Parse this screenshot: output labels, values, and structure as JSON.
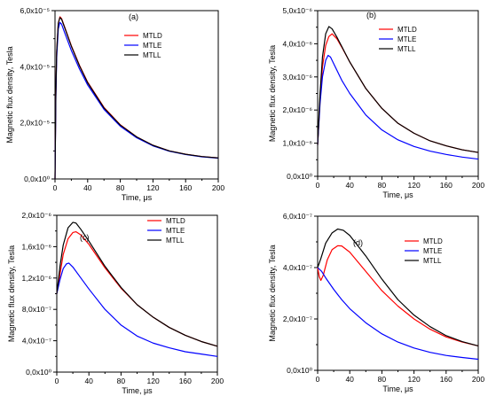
{
  "chart_data": [
    {
      "type": "line",
      "panel_label": "(a)",
      "xlabel": "Time, μs",
      "ylabel": "Magnetic flux density, Tesla",
      "xlim": [
        0,
        200
      ],
      "ylim": [
        0,
        6e-05
      ],
      "x_ticks": [
        "0",
        "40",
        "80",
        "120",
        "160",
        "200"
      ],
      "y_ticks": [
        "0,0x10⁰",
        "2,0x10⁻⁵",
        "4,0x10⁻⁵",
        "6,0x10⁻⁵"
      ],
      "legend_position": "top-right",
      "series": [
        {
          "name": "MTLD",
          "color": "#ff0000",
          "points": [
            [
              0,
              0
            ],
            [
              1,
              3e-05
            ],
            [
              2,
              4.5e-05
            ],
            [
              4,
              5.55e-05
            ],
            [
              6,
              5.78e-05
            ],
            [
              8,
              5.72e-05
            ],
            [
              12,
              5.4e-05
            ],
            [
              20,
              4.75e-05
            ],
            [
              30,
              4.05e-05
            ],
            [
              40,
              3.45e-05
            ],
            [
              60,
              2.55e-05
            ],
            [
              80,
              1.93e-05
            ],
            [
              100,
              1.5e-05
            ],
            [
              120,
              1.2e-05
            ],
            [
              140,
              1e-05
            ],
            [
              160,
              8.8e-06
            ],
            [
              180,
              8e-06
            ],
            [
              200,
              7.5e-06
            ]
          ]
        },
        {
          "name": "MTLE",
          "color": "#0000ff",
          "points": [
            [
              0,
              0
            ],
            [
              1,
              2.8e-05
            ],
            [
              2,
              4.3e-05
            ],
            [
              4,
              5.35e-05
            ],
            [
              6,
              5.58e-05
            ],
            [
              8,
              5.52e-05
            ],
            [
              12,
              5.2e-05
            ],
            [
              20,
              4.58e-05
            ],
            [
              30,
              3.92e-05
            ],
            [
              40,
              3.35e-05
            ],
            [
              60,
              2.48e-05
            ],
            [
              80,
              1.88e-05
            ],
            [
              100,
              1.47e-05
            ],
            [
              120,
              1.18e-05
            ],
            [
              140,
              9.9e-06
            ],
            [
              160,
              8.7e-06
            ],
            [
              180,
              7.9e-06
            ],
            [
              200,
              7.4e-06
            ]
          ]
        },
        {
          "name": "MTLL",
          "color": "#000000",
          "points": [
            [
              0,
              0
            ],
            [
              1,
              3e-05
            ],
            [
              2,
              4.5e-05
            ],
            [
              4,
              5.55e-05
            ],
            [
              6,
              5.75e-05
            ],
            [
              8,
              5.7e-05
            ],
            [
              12,
              5.38e-05
            ],
            [
              20,
              4.73e-05
            ],
            [
              30,
              4.03e-05
            ],
            [
              40,
              3.43e-05
            ],
            [
              60,
              2.53e-05
            ],
            [
              80,
              1.92e-05
            ],
            [
              100,
              1.5e-05
            ],
            [
              120,
              1.2e-05
            ],
            [
              140,
              1e-05
            ],
            [
              160,
              8.8e-06
            ],
            [
              180,
              8e-06
            ],
            [
              200,
              7.5e-06
            ]
          ]
        }
      ]
    },
    {
      "type": "line",
      "panel_label": "(b)",
      "xlabel": "Time, μs",
      "ylabel": "Magnetic flux density, Tesla",
      "xlim": [
        0,
        200
      ],
      "ylim": [
        0,
        5e-06
      ],
      "x_ticks": [
        "0",
        "40",
        "80",
        "120",
        "160",
        "200"
      ],
      "y_ticks": [
        "0,0x10⁰",
        "1,0x10⁻⁶",
        "2,0x10⁻⁶",
        "3,0x10⁻⁶",
        "4,0x10⁻⁶",
        "5,0x10⁻⁶"
      ],
      "legend_position": "top-right",
      "series": [
        {
          "name": "MTLD",
          "color": "#ff0000",
          "points": [
            [
              0,
              9.5e-07
            ],
            [
              3,
              2.3e-06
            ],
            [
              6,
              3.3e-06
            ],
            [
              10,
              3.95e-06
            ],
            [
              14,
              4.22e-06
            ],
            [
              18,
              4.3e-06
            ],
            [
              24,
              4.15e-06
            ],
            [
              30,
              3.9e-06
            ],
            [
              40,
              3.45e-06
            ],
            [
              60,
              2.65e-06
            ],
            [
              80,
              2.05e-06
            ],
            [
              100,
              1.6e-06
            ],
            [
              120,
              1.3e-06
            ],
            [
              140,
              1.07e-06
            ],
            [
              160,
              9.2e-07
            ],
            [
              180,
              8e-07
            ],
            [
              200,
              7.2e-07
            ]
          ]
        },
        {
          "name": "MTLE",
          "color": "#0000ff",
          "points": [
            [
              0,
              9.5e-07
            ],
            [
              3,
              2.2e-06
            ],
            [
              6,
              3e-06
            ],
            [
              10,
              3.5e-06
            ],
            [
              13,
              3.65e-06
            ],
            [
              16,
              3.6e-06
            ],
            [
              20,
              3.4e-06
            ],
            [
              30,
              2.9e-06
            ],
            [
              40,
              2.5e-06
            ],
            [
              60,
              1.85e-06
            ],
            [
              80,
              1.4e-06
            ],
            [
              100,
              1.1e-06
            ],
            [
              120,
              9e-07
            ],
            [
              140,
              7.6e-07
            ],
            [
              160,
              6.6e-07
            ],
            [
              180,
              5.8e-07
            ],
            [
              200,
              5.2e-07
            ]
          ]
        },
        {
          "name": "MTLL",
          "color": "#000000",
          "points": [
            [
              0,
              9.5e-07
            ],
            [
              3,
              2.5e-06
            ],
            [
              6,
              3.6e-06
            ],
            [
              10,
              4.3e-06
            ],
            [
              14,
              4.52e-06
            ],
            [
              18,
              4.45e-06
            ],
            [
              24,
              4.2e-06
            ],
            [
              30,
              3.92e-06
            ],
            [
              40,
              3.45e-06
            ],
            [
              60,
              2.65e-06
            ],
            [
              80,
              2.05e-06
            ],
            [
              100,
              1.6e-06
            ],
            [
              120,
              1.3e-06
            ],
            [
              140,
              1.07e-06
            ],
            [
              160,
              9.2e-07
            ],
            [
              180,
              8e-07
            ],
            [
              200,
              7.2e-07
            ]
          ]
        }
      ]
    },
    {
      "type": "line",
      "panel_label": "(c)",
      "xlabel": "Time, μs",
      "ylabel": "Magnetic flux density, Tesla",
      "xlim": [
        0,
        200
      ],
      "ylim": [
        0,
        2e-06
      ],
      "x_ticks": [
        "0",
        "40",
        "80",
        "120",
        "160",
        "200"
      ],
      "y_ticks": [
        "0,0x10⁰",
        "4,0x10⁻⁷",
        "8,0x10⁻⁷",
        "1,2x10⁻⁶",
        "1,6x10⁻⁶",
        "2,0x10⁻⁶"
      ],
      "legend_position": "top-right",
      "series": [
        {
          "name": "MTLD",
          "color": "#ff0000",
          "points": [
            [
              0,
              1e-06
            ],
            [
              4,
              1.25e-06
            ],
            [
              8,
              1.5e-06
            ],
            [
              14,
              1.7e-06
            ],
            [
              20,
              1.78e-06
            ],
            [
              24,
              1.79e-06
            ],
            [
              30,
              1.75e-06
            ],
            [
              40,
              1.63e-06
            ],
            [
              60,
              1.33e-06
            ],
            [
              80,
              1.07e-06
            ],
            [
              100,
              8.6e-07
            ],
            [
              120,
              7e-07
            ],
            [
              140,
              5.7e-07
            ],
            [
              160,
              4.7e-07
            ],
            [
              180,
              3.9e-07
            ],
            [
              200,
              3.3e-07
            ]
          ]
        },
        {
          "name": "MTLE",
          "color": "#0000ff",
          "points": [
            [
              0,
              1e-06
            ],
            [
              4,
              1.18e-06
            ],
            [
              8,
              1.32e-06
            ],
            [
              12,
              1.38e-06
            ],
            [
              15,
              1.39e-06
            ],
            [
              20,
              1.34e-06
            ],
            [
              30,
              1.2e-06
            ],
            [
              40,
              1.06e-06
            ],
            [
              60,
              8e-07
            ],
            [
              80,
              6e-07
            ],
            [
              100,
              4.6e-07
            ],
            [
              120,
              3.7e-07
            ],
            [
              140,
              3.1e-07
            ],
            [
              160,
              2.6e-07
            ],
            [
              180,
              2.3e-07
            ],
            [
              200,
              2e-07
            ]
          ]
        },
        {
          "name": "MTLL",
          "color": "#000000",
          "points": [
            [
              0,
              1e-06
            ],
            [
              4,
              1.35e-06
            ],
            [
              8,
              1.62e-06
            ],
            [
              14,
              1.84e-06
            ],
            [
              20,
              1.91e-06
            ],
            [
              24,
              1.9e-06
            ],
            [
              30,
              1.82e-06
            ],
            [
              40,
              1.67e-06
            ],
            [
              60,
              1.35e-06
            ],
            [
              80,
              1.08e-06
            ],
            [
              100,
              8.6e-07
            ],
            [
              120,
              7e-07
            ],
            [
              140,
              5.7e-07
            ],
            [
              160,
              4.7e-07
            ],
            [
              180,
              3.9e-07
            ],
            [
              200,
              3.3e-07
            ]
          ]
        }
      ]
    },
    {
      "type": "line",
      "panel_label": "(d)",
      "xlabel": "Time, μs",
      "ylabel": "Magnetic flux density, Tesla",
      "xlim": [
        0,
        200
      ],
      "ylim": [
        0,
        6e-07
      ],
      "x_ticks": [
        "0",
        "40",
        "80",
        "120",
        "160",
        "200"
      ],
      "y_ticks": [
        "0,0x10⁰",
        "2,0x10⁻⁷",
        "4,0x10⁻⁷",
        "6,0x10⁻⁷"
      ],
      "legend_position": "top-right",
      "series": [
        {
          "name": "MTLD",
          "color": "#ff0000",
          "points": [
            [
              0,
              4e-07
            ],
            [
              2,
              3.65e-07
            ],
            [
              4,
              3.5e-07
            ],
            [
              7,
              3.7e-07
            ],
            [
              12,
              4.3e-07
            ],
            [
              18,
              4.7e-07
            ],
            [
              25,
              4.85e-07
            ],
            [
              30,
              4.84e-07
            ],
            [
              40,
              4.6e-07
            ],
            [
              60,
              3.85e-07
            ],
            [
              80,
              3.1e-07
            ],
            [
              100,
              2.5e-07
            ],
            [
              120,
              2e-07
            ],
            [
              140,
              1.6e-07
            ],
            [
              160,
              1.3e-07
            ],
            [
              180,
              1.1e-07
            ],
            [
              200,
              9.5e-08
            ]
          ]
        },
        {
          "name": "MTLE",
          "color": "#0000ff",
          "points": [
            [
              0,
              4e-07
            ],
            [
              5,
              3.85e-07
            ],
            [
              10,
              3.6e-07
            ],
            [
              20,
              3.15e-07
            ],
            [
              30,
              2.75e-07
            ],
            [
              40,
              2.4e-07
            ],
            [
              60,
              1.85e-07
            ],
            [
              80,
              1.42e-07
            ],
            [
              100,
              1.1e-07
            ],
            [
              120,
              8.7e-08
            ],
            [
              140,
              7e-08
            ],
            [
              160,
              5.8e-08
            ],
            [
              180,
              5e-08
            ],
            [
              200,
              4.3e-08
            ]
          ]
        },
        {
          "name": "MTLL",
          "color": "#000000",
          "points": [
            [
              0,
              4e-07
            ],
            [
              4,
              4.35e-07
            ],
            [
              10,
              4.95e-07
            ],
            [
              18,
              5.35e-07
            ],
            [
              25,
              5.5e-07
            ],
            [
              32,
              5.45e-07
            ],
            [
              40,
              5.25e-07
            ],
            [
              60,
              4.45e-07
            ],
            [
              80,
              3.55e-07
            ],
            [
              100,
              2.75e-07
            ],
            [
              120,
              2.15e-07
            ],
            [
              140,
              1.7e-07
            ],
            [
              160,
              1.35e-07
            ],
            [
              180,
              1.12e-07
            ],
            [
              200,
              9.5e-08
            ]
          ]
        }
      ]
    }
  ]
}
